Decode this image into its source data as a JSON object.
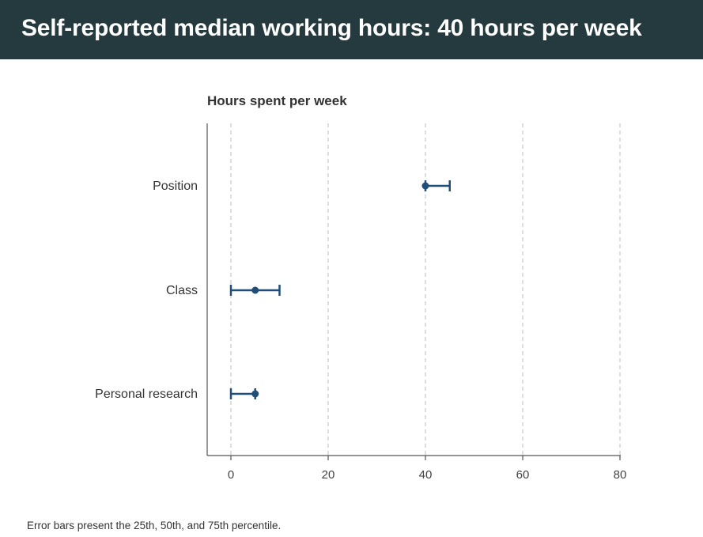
{
  "header": {
    "title": "Self-reported median working hours: 40 hours per week"
  },
  "footnote": "Error bars present the 25th, 50th, and 75th percentile.",
  "colors": {
    "header_bg": "#253a3e",
    "marker": "#1f4e79",
    "grid": "#c8c8c8",
    "axis": "#555555"
  },
  "chart_data": {
    "type": "scatter",
    "title": "Hours spent per week",
    "xlabel": "",
    "ylabel": "",
    "xlim": [
      -5,
      80
    ],
    "xticks": [
      0,
      20,
      40,
      60,
      80
    ],
    "grid": "vertical dashed",
    "categories": [
      "Position",
      "Class",
      "Personal research"
    ],
    "series": [
      {
        "p25": [
          40,
          0,
          0
        ],
        "median": [
          40,
          5,
          5
        ],
        "p75": [
          45,
          10,
          5
        ]
      }
    ]
  }
}
